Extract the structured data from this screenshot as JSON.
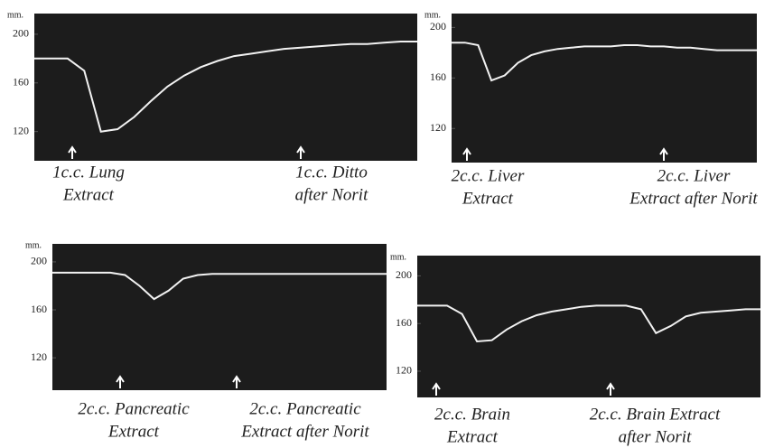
{
  "chart_data": [
    {
      "type": "line",
      "ylabel": "mm.",
      "ylim": [
        96,
        217
      ],
      "yticks": [
        120,
        160,
        200
      ],
      "color": "#f2f2f2",
      "values": [
        180,
        180,
        180,
        170,
        120,
        122,
        132,
        145,
        157,
        166,
        173,
        178,
        182,
        184,
        186,
        188,
        189,
        190,
        191,
        192,
        192,
        193,
        194,
        194
      ],
      "annotations": [
        [
          "1c.c. Lung",
          "Extract"
        ],
        [
          "1c.c. Ditto",
          "after Norit"
        ]
      ]
    },
    {
      "type": "line",
      "ylabel": "mm.",
      "ylim": [
        93,
        211
      ],
      "yticks": [
        120,
        160,
        200
      ],
      "color": "#f2f2f2",
      "values": [
        188,
        188,
        186,
        158,
        162,
        172,
        178,
        181,
        183,
        184,
        185,
        185,
        185,
        186,
        186,
        185,
        185,
        184,
        184,
        183,
        182,
        182,
        182,
        182
      ],
      "annotations": [
        [
          "2c.c. Liver",
          "Extract"
        ],
        [
          "2c.c. Liver",
          "Extract after Norit"
        ]
      ]
    },
    {
      "type": "line",
      "ylabel": "mm.",
      "ylim": [
        93,
        215
      ],
      "yticks": [
        120,
        160,
        200
      ],
      "color": "#f2f2f2",
      "values": [
        191,
        191,
        191,
        191,
        191,
        189,
        180,
        169,
        176,
        186,
        189,
        190,
        190,
        190,
        190,
        190,
        190,
        190,
        190,
        190,
        190,
        190,
        190,
        190
      ],
      "annotations": [
        [
          "2c.c. Pancreatic",
          "Extract"
        ],
        [
          "2c.c. Pancreatic",
          "Extract after Norit"
        ]
      ]
    },
    {
      "type": "line",
      "ylabel": "mm.",
      "ylim": [
        98,
        217
      ],
      "yticks": [
        120,
        160,
        200
      ],
      "color": "#f2f2f2",
      "values": [
        175,
        175,
        175,
        168,
        145,
        146,
        155,
        162,
        167,
        170,
        172,
        174,
        175,
        175,
        175,
        172,
        152,
        158,
        166,
        169,
        170,
        171,
        172,
        172
      ],
      "annotations": [
        [
          "2c.c. Brain",
          "Extract"
        ],
        [
          "2c.c. Brain Extract",
          "after Norit"
        ]
      ]
    }
  ]
}
